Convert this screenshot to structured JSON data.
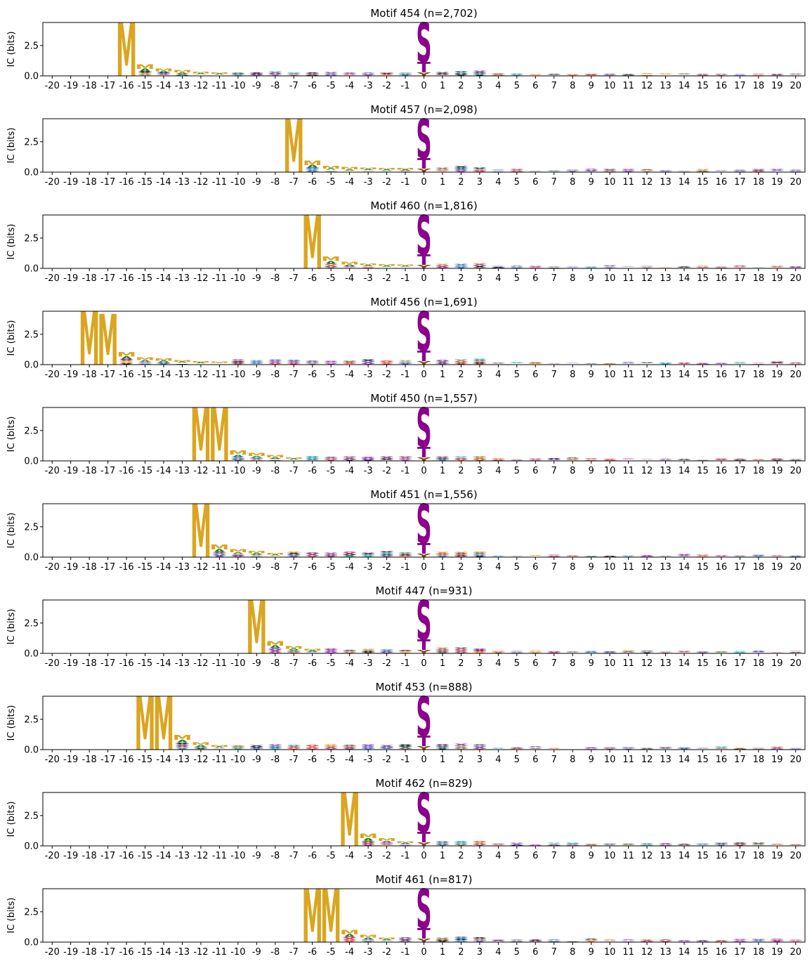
{
  "chart_data": {
    "type": "sequence-logo",
    "x_positions": [
      -20,
      -19,
      -18,
      -17,
      -16,
      -15,
      -14,
      -13,
      -12,
      -11,
      -10,
      -9,
      -8,
      -7,
      -6,
      -5,
      -4,
      -3,
      -2,
      -1,
      0,
      1,
      2,
      3,
      4,
      5,
      6,
      7,
      8,
      9,
      10,
      11,
      12,
      13,
      14,
      15,
      16,
      17,
      18,
      19,
      20
    ],
    "ylabel": "IC (bits)",
    "yticks": [
      "0.0",
      "2.5"
    ],
    "ylim": [
      0,
      4.4
    ],
    "colors": {
      "M": "#daa520",
      "S": "#8b008b",
      "T": "#8b008b",
      "A": "#008000",
      "Y": "#8b4513",
      "other": [
        "#e03c31",
        "#4169e1",
        "#9932cc",
        "#000000",
        "#ff8c00",
        "#20b2aa",
        "#c71585",
        "#2f4f4f"
      ]
    },
    "site_residues": {
      "main": "S",
      "second": "T",
      "third": "Y"
    },
    "panels": [
      {
        "title": "Motif 454 (n=2,702)",
        "m_positions": [
          [
            -16,
            4.4
          ]
        ],
        "m_tail": [
          -15,
          1.0,
          -14,
          0.6,
          -13,
          0.45,
          -12,
          0.35,
          -11,
          0.3
        ],
        "bg": [
          0.3,
          0.22,
          0.2
        ]
      },
      {
        "title": "Motif 457 (n=2,098)",
        "m_positions": [
          [
            -7,
            4.4
          ]
        ],
        "m_tail": [
          -6,
          1.0,
          -5,
          0.55,
          -4,
          0.45,
          -3,
          0.35,
          -2,
          0.35,
          -1,
          0.35
        ],
        "bg": [
          0.35,
          0.25,
          0.22
        ]
      },
      {
        "title": "Motif 460 (n=1,816)",
        "m_positions": [
          [
            -6,
            4.4
          ]
        ],
        "m_tail": [
          -5,
          1.0,
          -4,
          0.55,
          -3,
          0.4,
          -2,
          0.35,
          -1,
          0.3
        ],
        "bg": [
          0.3,
          0.22,
          0.2
        ]
      },
      {
        "title": "Motif 456 (n=1,691)",
        "m_positions": [
          [
            -18,
            4.4
          ],
          [
            -17,
            4.2
          ]
        ],
        "m_tail": [
          -16,
          1.0,
          -15,
          0.6,
          -14,
          0.5,
          -13,
          0.35,
          -12,
          0.3,
          -11,
          0.25
        ],
        "bg": [
          0.35,
          0.25,
          0.2
        ]
      },
      {
        "title": "Motif 450 (n=1,557)",
        "m_positions": [
          [
            -12,
            4.4
          ],
          [
            -11,
            4.4
          ]
        ],
        "m_tail": [
          -10,
          0.9,
          -9,
          0.65,
          -8,
          0.45,
          -7,
          0.3
        ],
        "bg": [
          0.35,
          0.25,
          0.2
        ]
      },
      {
        "title": "Motif 451 (n=1,556)",
        "m_positions": [
          [
            -12,
            4.4
          ]
        ],
        "m_tail": [
          -11,
          1.1,
          -10,
          0.65,
          -9,
          0.5,
          -8,
          0.35
        ],
        "bg": [
          0.4,
          0.28,
          0.2
        ]
      },
      {
        "title": "Motif 447 (n=931)",
        "m_positions": [
          [
            -9,
            4.4
          ]
        ],
        "m_tail": [
          -8,
          1.05,
          -7,
          0.55,
          -6,
          0.35
        ],
        "bg": [
          0.35,
          0.28,
          0.22
        ]
      },
      {
        "title": "Motif 453 (n=888)",
        "m_positions": [
          [
            -15,
            4.4
          ],
          [
            -14,
            4.4
          ]
        ],
        "m_tail": [
          -13,
          1.1,
          -12,
          0.6,
          -11,
          0.35
        ],
        "bg": [
          0.4,
          0.3,
          0.22
        ]
      },
      {
        "title": "Motif 462 (n=829)",
        "m_positions": [
          [
            -4,
            4.4
          ]
        ],
        "m_tail": [
          -3,
          1.0,
          -2,
          0.6,
          -1,
          0.35
        ],
        "bg": [
          0.4,
          0.28,
          0.22
        ]
      },
      {
        "title": "Motif 461 (n=817)",
        "m_positions": [
          [
            -6,
            4.4
          ],
          [
            -5,
            4.4
          ]
        ],
        "m_tail": [
          -4,
          1.0,
          -3,
          0.6,
          -2,
          0.35
        ],
        "bg": [
          0.35,
          0.28,
          0.22
        ]
      }
    ]
  }
}
